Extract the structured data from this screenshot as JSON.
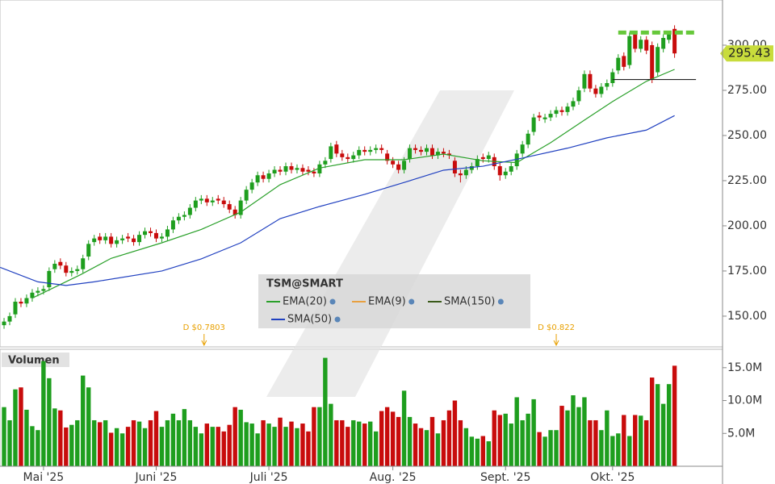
{
  "chart_data": {
    "type": "candlestick",
    "symbol": "TSM@SMART",
    "up_color": "#1e9e1e",
    "down_color": "#c80c0c",
    "xlim": [
      -0.72,
      126.65
    ],
    "xticks": [
      {
        "value": 7,
        "label": "Mai '25"
      },
      {
        "value": 27,
        "label": "Juni '25"
      },
      {
        "value": 47,
        "label": "Juli '25"
      },
      {
        "value": 69,
        "label": "Aug. '25"
      },
      {
        "value": 89,
        "label": "Sept. '25"
      },
      {
        "value": 108,
        "label": "Okt. '25"
      }
    ],
    "ylim": [
      133,
      325
    ],
    "yticks": [
      {
        "value": 150,
        "label": "150.00"
      },
      {
        "value": 175,
        "label": "175.00"
      },
      {
        "value": 200,
        "label": "200.00"
      },
      {
        "value": 225,
        "label": "225.00"
      },
      {
        "value": 250,
        "label": "250.00"
      },
      {
        "value": 275,
        "label": "275.00"
      },
      {
        "value": 300,
        "label": "300.00"
      }
    ],
    "open": [
      145,
      147,
      151,
      158,
      157,
      160,
      163,
      164,
      166,
      176,
      180,
      178,
      174,
      175,
      176,
      183,
      191,
      194,
      192,
      194,
      190,
      192,
      194,
      193,
      191,
      195,
      197,
      196,
      193,
      194,
      198,
      203,
      205,
      206,
      210,
      214,
      215,
      213,
      215,
      214,
      212,
      209,
      206,
      214,
      220,
      224,
      228,
      226,
      229,
      231,
      230,
      233,
      231,
      232,
      231,
      230,
      229,
      234,
      237,
      245,
      240,
      238,
      237,
      239,
      242,
      241,
      242,
      243,
      240,
      236,
      234,
      231,
      237,
      243,
      242,
      241,
      243,
      239,
      241,
      240,
      236,
      229,
      228,
      231,
      233,
      238,
      237,
      238,
      233,
      228,
      230,
      233,
      240,
      245,
      252,
      261,
      259,
      260,
      262,
      264,
      263,
      266,
      269,
      276,
      284,
      276,
      273,
      277,
      279,
      286,
      294,
      289,
      306,
      298,
      303,
      300,
      285,
      298,
      303,
      309
    ],
    "high": [
      149,
      152,
      160,
      160,
      162,
      165,
      166,
      167,
      177,
      181,
      182,
      180,
      177,
      178,
      184,
      192,
      195,
      196,
      196,
      196,
      194,
      195,
      196,
      195,
      197,
      199,
      199,
      198,
      196,
      200,
      205,
      207,
      208,
      212,
      216,
      217,
      217,
      216,
      217,
      216,
      214,
      211,
      216,
      222,
      226,
      230,
      230,
      231,
      233,
      233,
      235,
      235,
      234,
      234,
      233,
      232,
      236,
      238,
      246,
      247,
      242,
      240,
      241,
      244,
      244,
      244,
      245,
      245,
      242,
      238,
      236,
      238,
      245,
      245,
      244,
      245,
      245,
      243,
      243,
      242,
      238,
      231,
      233,
      235,
      239,
      240,
      241,
      240,
      235,
      232,
      235,
      242,
      247,
      253,
      262,
      263,
      262,
      264,
      266,
      266,
      268,
      271,
      277,
      286,
      286,
      278,
      279,
      281,
      287,
      295,
      296,
      307,
      308,
      305,
      305,
      302,
      301,
      306,
      308,
      311
    ],
    "low": [
      143,
      145,
      149,
      155,
      155,
      158,
      161,
      162,
      164,
      174,
      176,
      172,
      172,
      173,
      174,
      181,
      189,
      190,
      190,
      188,
      188,
      190,
      191,
      189,
      189,
      193,
      194,
      191,
      191,
      192,
      196,
      201,
      203,
      204,
      208,
      212,
      211,
      211,
      212,
      210,
      207,
      204,
      204,
      212,
      218,
      222,
      224,
      224,
      227,
      228,
      228,
      229,
      229,
      228,
      228,
      227,
      227,
      232,
      235,
      238,
      236,
      235,
      235,
      237,
      239,
      239,
      240,
      240,
      234,
      232,
      229,
      229,
      235,
      240,
      239,
      239,
      237,
      237,
      238,
      237,
      227,
      224,
      226,
      229,
      231,
      235,
      235,
      231,
      225,
      226,
      228,
      231,
      238,
      243,
      250,
      258,
      257,
      258,
      260,
      261,
      261,
      264,
      267,
      274,
      274,
      271,
      271,
      275,
      277,
      284,
      286,
      287,
      296,
      296,
      295,
      279,
      283,
      296,
      301,
      293
    ],
    "close": [
      147,
      150,
      158,
      157,
      160,
      163,
      164,
      165,
      175,
      179,
      178,
      174,
      175,
      176,
      182,
      190,
      193,
      192,
      194,
      190,
      192,
      193,
      193,
      191,
      195,
      197,
      196,
      193,
      194,
      198,
      203,
      205,
      206,
      210,
      214,
      215,
      213,
      214,
      214,
      212,
      209,
      206,
      214,
      220,
      224,
      228,
      226,
      229,
      231,
      230,
      233,
      231,
      232,
      230,
      230,
      229,
      234,
      236,
      244,
      240,
      238,
      237,
      239,
      242,
      241,
      242,
      243,
      242,
      236,
      234,
      231,
      236,
      243,
      242,
      241,
      243,
      239,
      241,
      240,
      239,
      229,
      228,
      231,
      233,
      237,
      237,
      239,
      233,
      228,
      230,
      233,
      240,
      245,
      251,
      260,
      260,
      260,
      262,
      264,
      263,
      266,
      269,
      275,
      284,
      276,
      273,
      277,
      279,
      285,
      293,
      288,
      305,
      298,
      303,
      297,
      281,
      299,
      304,
      306,
      295.43
    ],
    "series": [
      {
        "name": "EMA(20)",
        "color": "#2aa02a",
        "x": [
          5,
          13.6,
          19,
          28,
          35,
          42,
          49,
          56,
          64,
          71,
          78,
          85,
          91,
          97,
          103,
          108,
          114,
          119
        ],
        "values": [
          160,
          173,
          182,
          190.6,
          198,
          207.6,
          222.8,
          232,
          236.6,
          236.6,
          239.7,
          236,
          235,
          246,
          258.5,
          268.8,
          280,
          286.6
        ]
      },
      {
        "name": "EMA(9)",
        "color": "#e8a040"
      },
      {
        "name": "SMA(150)",
        "color": "#3a5a1a"
      },
      {
        "name": "SMA(50)",
        "color": "#2040c0",
        "x": [
          -0.7,
          6,
          11,
          16,
          28,
          35,
          42,
          49,
          56,
          64,
          71,
          78,
          85,
          92,
          100,
          107,
          114,
          119
        ],
        "values": [
          177,
          169,
          167,
          169,
          175,
          181.7,
          190.6,
          204,
          210.7,
          217.4,
          224,
          230.8,
          233,
          237.5,
          243,
          248.7,
          253,
          261
        ]
      }
    ],
    "levels": [
      {
        "value": 307,
        "color": "#66c83a",
        "style": "dashed",
        "from": 109,
        "to": 122.8
      },
      {
        "value": 281,
        "color": "#222222",
        "style": "solid",
        "from": 108,
        "to": 122.8
      }
    ],
    "dividends": [
      {
        "x": 35.5,
        "label": "D $0.7803"
      },
      {
        "x": 98,
        "label": "D $0.822"
      }
    ],
    "volume": {
      "title": "Volumen",
      "values": [
        9.0,
        7.0,
        11.7,
        12.0,
        8.6,
        6.1,
        5.5,
        16.0,
        13.4,
        8.8,
        8.5,
        5.9,
        6.3,
        7.0,
        13.8,
        12.0,
        7.0,
        6.7,
        7.0,
        5.1,
        5.8,
        5.0,
        6.0,
        7.0,
        6.8,
        5.8,
        7.0,
        8.4,
        6.0,
        7.0,
        8.0,
        7.0,
        8.7,
        7.0,
        6.0,
        5.0,
        6.5,
        6.0,
        6.0,
        5.3,
        6.3,
        9.0,
        8.6,
        6.7,
        6.5,
        5.0,
        7.0,
        6.5,
        6.0,
        7.4,
        6.0,
        6.8,
        5.8,
        6.5,
        5.3,
        9.0,
        9.0,
        16.5,
        9.5,
        7.0,
        7.0,
        6.0,
        7.0,
        6.8,
        6.5,
        6.8,
        5.3,
        8.4,
        9.0,
        8.3,
        7.5,
        11.5,
        7.5,
        6.5,
        5.8,
        5.5,
        7.5,
        5.0,
        7.0,
        8.5,
        10.0,
        7.0,
        5.8,
        4.5,
        4.2,
        4.6,
        3.8,
        8.5,
        7.8,
        8.0,
        6.5,
        10.5,
        7.0,
        8.0,
        10.2,
        5.2,
        4.5,
        5.5,
        5.5,
        9.2,
        8.5,
        10.8,
        9.0,
        10.5,
        7.0,
        7.0,
        5.5,
        8.5,
        4.6,
        5.0,
        7.8,
        4.6,
        7.8,
        7.7,
        7.0,
        13.5,
        12.5,
        9.5,
        12.5,
        15.3
      ],
      "ylim": [
        0,
        17.8
      ],
      "yticks": [
        {
          "value": 5,
          "label": "5.0M"
        },
        {
          "value": 10,
          "label": "10.0M"
        },
        {
          "value": 15,
          "label": "15.0M"
        }
      ]
    }
  }
}
